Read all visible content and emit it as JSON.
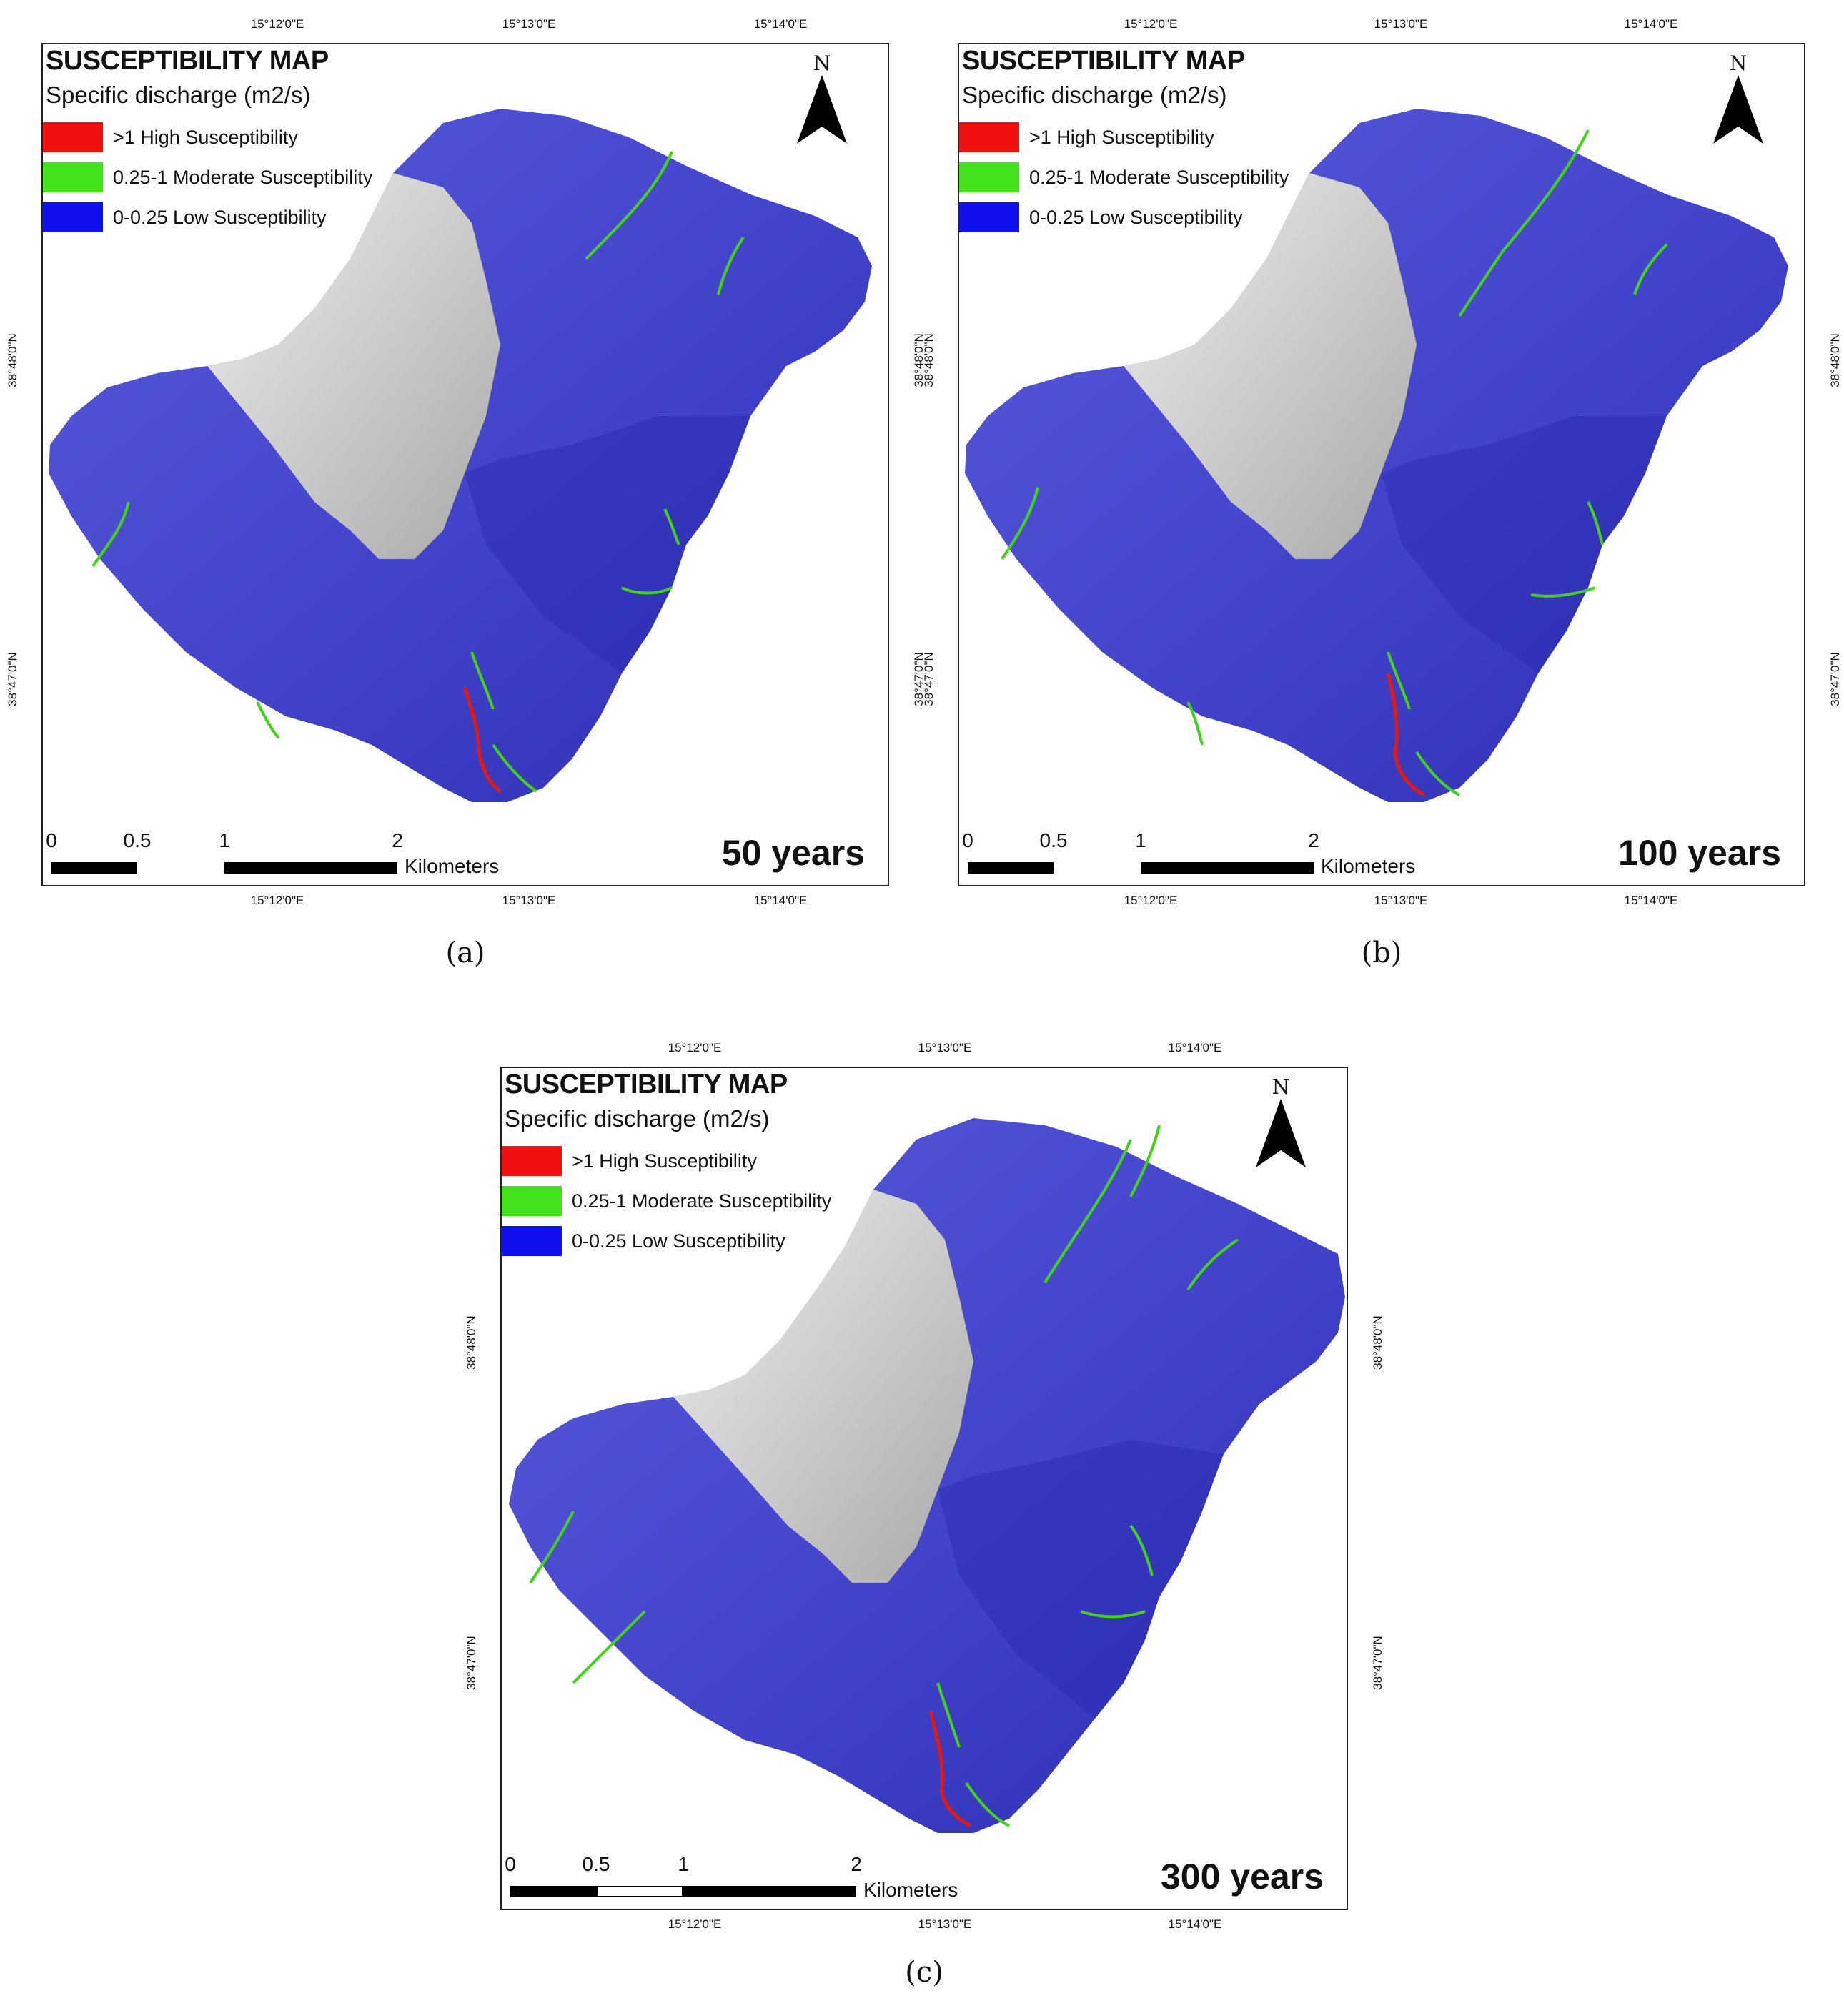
{
  "legend": {
    "title": "SUSCEPTIBILITY MAP",
    "subtitle": "Specific discharge (m2/s)",
    "items": [
      {
        "label": ">1   High Susceptibility",
        "color": "#f01010"
      },
      {
        "label": "0.25-1 Moderate Susceptibility",
        "color": "#44e21a"
      },
      {
        "label": "0-0.25 Low Susceptibility",
        "color": "#1010ee"
      }
    ]
  },
  "north_letter": "N",
  "scale_bar": {
    "labels": [
      "0",
      "0.5",
      "1",
      "2"
    ],
    "unit": "Kilometers"
  },
  "ticks": {
    "lon": [
      "15°12'0\"E",
      "15°13'0\"E",
      "15°14'0\"E"
    ],
    "lat": [
      "38°48'0\"N",
      "38°47'0\"N"
    ]
  },
  "colors": {
    "low_fill": "#4d4ed6",
    "low_fill_dark": "#2f30b8",
    "crater_fill": "#d9d9d9",
    "channel_moderate": "#44d11a",
    "channel_high": "#e41a10"
  },
  "panels": [
    {
      "caption": "(a)",
      "years": "50 years"
    },
    {
      "caption": "(b)",
      "years": "100 years"
    },
    {
      "caption": "(c)",
      "years": "300 years"
    }
  ]
}
